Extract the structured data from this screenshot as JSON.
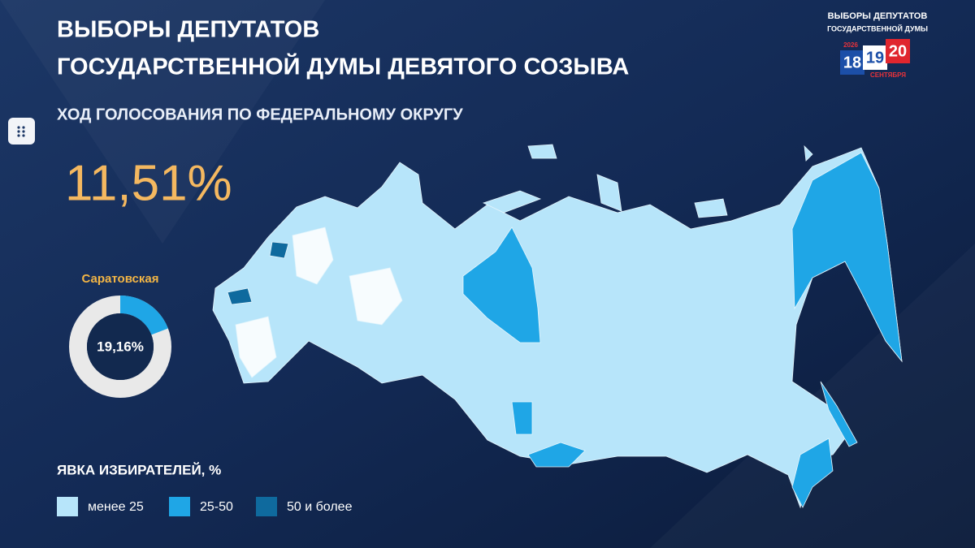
{
  "header": {
    "title_line1": "ВЫБОРЫ ДЕПУТАТОВ",
    "title_line2": "ГОСУДАРСТВЕННОЙ ДУМЫ ДЕВЯТОГО СОЗЫВА",
    "subtitle": "ХОД ГОЛОСОВАНИЯ ПО ФЕДЕРАЛЬНОМУ ОКРУГУ"
  },
  "turnout": "11,51%",
  "region": {
    "name": "Саратовская",
    "value": 19.16,
    "value_label": "19,16%"
  },
  "legend": {
    "title": "ЯВКА ИЗБИРАТЕЛЕЙ, %",
    "items": [
      {
        "label": "менее 25",
        "color": "#b7e5fa"
      },
      {
        "label": "25-50",
        "color": "#1fa6e6"
      },
      {
        "label": "50 и более",
        "color": "#0f6a9e"
      }
    ]
  },
  "logo": {
    "line1": "ВЫБОРЫ ДЕПУТАТОВ",
    "line2": "ГОСУДАРСТВЕННОЙ ДУМЫ",
    "year": "2026",
    "day1": "18",
    "day2": "19",
    "day3": "20",
    "month": "СЕНТЯБРЯ"
  }
}
